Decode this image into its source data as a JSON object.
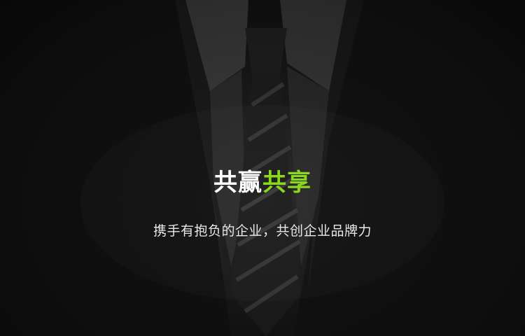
{
  "headline": {
    "part1": "共赢",
    "part2": "共享"
  },
  "subtitle": "携手有抱负的企业，共创企业品牌力",
  "colors": {
    "background": "#161616",
    "headline_white": "#ffffff",
    "headline_accent": "#8bd81e",
    "subtitle": "#e8e8e8"
  },
  "background_image": "dark-business-suit-with-striped-tie"
}
